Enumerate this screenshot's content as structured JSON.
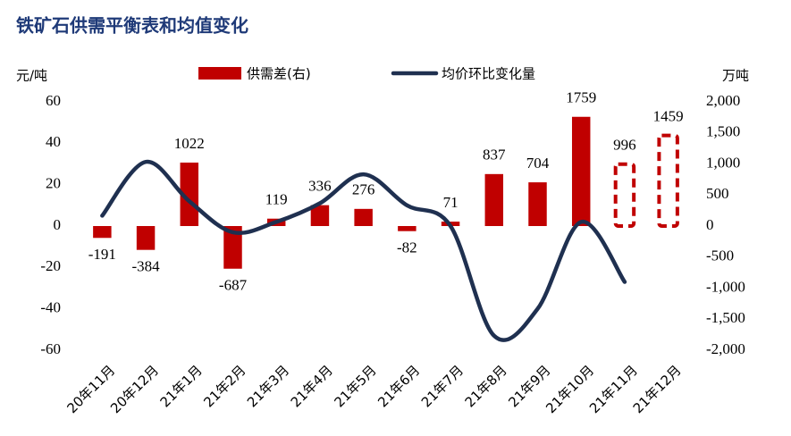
{
  "chart_data": {
    "type": "bar-line",
    "title": "铁矿石供需平衡表和均值变化",
    "y_label": "元/吨",
    "y2_label": "万吨",
    "categories": [
      "20年11月",
      "20年12月",
      "21年1月",
      "21年2月",
      "21年3月",
      "21年4月",
      "21年5月",
      "21年6月",
      "21年7月",
      "21年8月",
      "21年9月",
      "21年10月",
      "21年11月",
      "21年12月"
    ],
    "series": [
      {
        "name": "供需差(右)",
        "type": "bar",
        "axis": "y2",
        "color": "#c00000",
        "values": [
          -191,
          -384,
          1022,
          -687,
          119,
          336,
          276,
          -82,
          71,
          837,
          704,
          1759,
          996,
          1459
        ],
        "dashed": [
          false,
          false,
          false,
          false,
          false,
          false,
          false,
          false,
          false,
          false,
          false,
          false,
          true,
          true
        ]
      },
      {
        "name": "均价环比变化量",
        "type": "line",
        "axis": "y",
        "color": "#1f3050",
        "values": [
          5,
          31,
          12,
          -3,
          2,
          11,
          25,
          10,
          0,
          -53,
          -40,
          2,
          -27,
          null
        ]
      }
    ],
    "ylim": [
      -60,
      60
    ],
    "yticks": [
      -60,
      -40,
      -20,
      0,
      20,
      40,
      60
    ],
    "y2lim": [
      -2000,
      2000
    ],
    "y2ticks": [
      {
        "value": -2000,
        "label": "-2,000"
      },
      {
        "value": -1500,
        "label": "-1,500"
      },
      {
        "value": -1000,
        "label": "-1,000"
      },
      -500,
      0,
      500,
      {
        "value": 1000,
        "label": "1,000"
      },
      {
        "value": 1500,
        "label": "1,500"
      },
      {
        "value": 2000,
        "label": "2,000"
      }
    ],
    "y2_negative_color": "#c00000",
    "legend": "top"
  }
}
